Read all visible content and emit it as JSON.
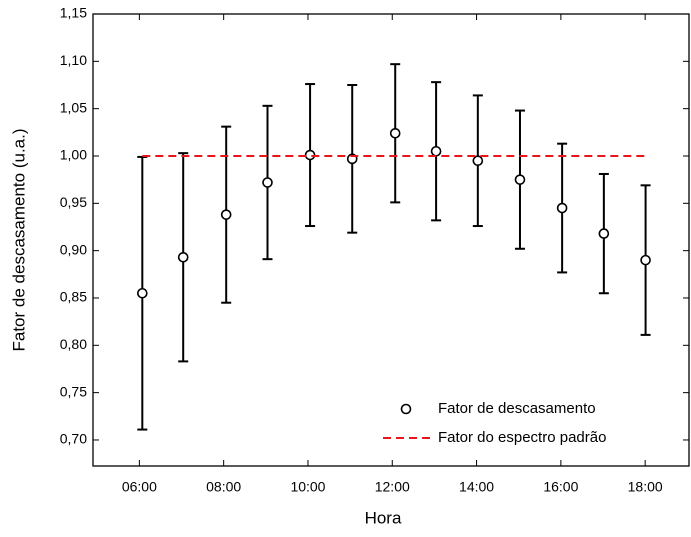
{
  "chart_data": {
    "type": "errorbar",
    "xlabel": "Hora",
    "ylabel": "Fator de descasamento (u.a.)",
    "xlim": [
      4.9,
      19.04
    ],
    "ylim": [
      0.6725,
      1.15
    ],
    "xticks": [
      {
        "value": 6,
        "label": "06:00"
      },
      {
        "value": 8,
        "label": "08:00"
      },
      {
        "value": 10,
        "label": "10:00"
      },
      {
        "value": 12,
        "label": "12:00"
      },
      {
        "value": 14,
        "label": "14:00"
      },
      {
        "value": 16,
        "label": "16:00"
      },
      {
        "value": 18,
        "label": "18:00"
      }
    ],
    "yticks": [
      {
        "value": 0.7,
        "label": "0,70"
      },
      {
        "value": 0.75,
        "label": "0,75"
      },
      {
        "value": 0.8,
        "label": "0,80"
      },
      {
        "value": 0.85,
        "label": "0,85"
      },
      {
        "value": 0.9,
        "label": "0,90"
      },
      {
        "value": 0.95,
        "label": "0,95"
      },
      {
        "value": 1.0,
        "label": "1,00"
      },
      {
        "value": 1.05,
        "label": "1,05"
      },
      {
        "value": 1.1,
        "label": "1,10"
      },
      {
        "value": 1.15,
        "label": "1,15"
      }
    ],
    "legend": "lower right",
    "series": [
      {
        "name": "Fator de descasamento",
        "color": "#000000",
        "marker": "circle",
        "x": [
          6.07,
          7.04,
          8.06,
          9.04,
          10.05,
          11.05,
          12.07,
          13.04,
          14.03,
          15.03,
          16.03,
          17.02,
          18.01
        ],
        "values": [
          0.855,
          0.893,
          0.938,
          0.972,
          1.001,
          0.997,
          1.024,
          1.005,
          0.995,
          0.975,
          0.945,
          0.918,
          0.89
        ],
        "errors": [
          0.144,
          0.11,
          0.093,
          0.081,
          0.075,
          0.078,
          0.073,
          0.073,
          0.069,
          0.073,
          0.068,
          0.063,
          0.079
        ]
      },
      {
        "name": "Fator do espectro padrão",
        "color": "#e8161b",
        "style": "dashed",
        "x": [
          6.07,
          18.01
        ],
        "values": [
          1.0,
          1.0
        ]
      }
    ]
  }
}
